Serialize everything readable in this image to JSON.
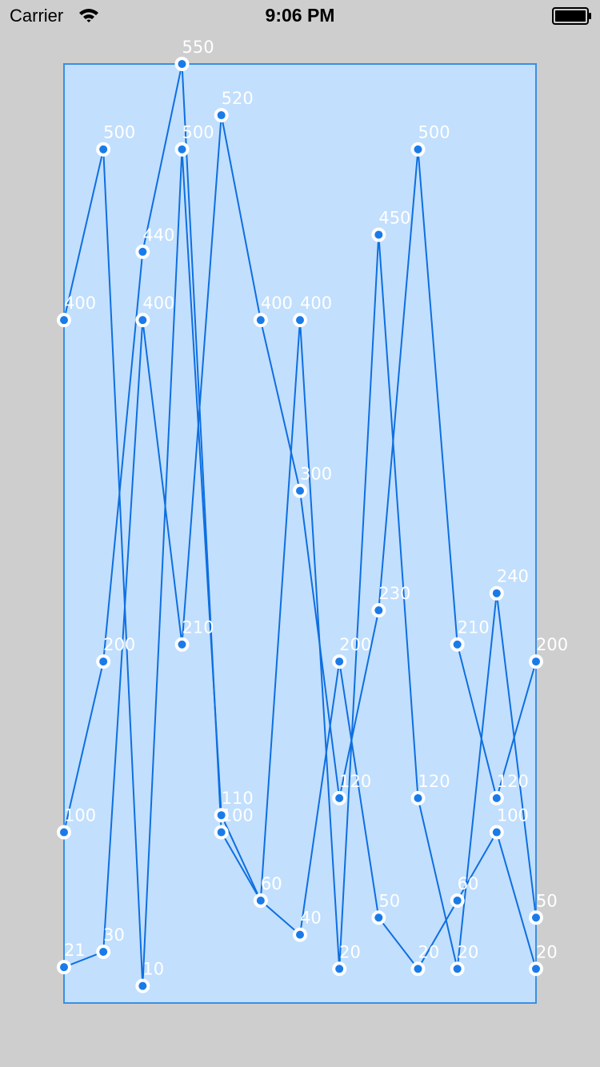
{
  "status_bar": {
    "carrier": "Carrier",
    "time": "9:06 PM",
    "icons": [
      "wifi-icon",
      "battery-icon"
    ]
  },
  "colors": {
    "background": "#cecece",
    "plot_area": "#c2dffd",
    "plot_border": "#3a8fe4",
    "line": "#0e6fe0",
    "marker_fill": "#1a7be8",
    "marker_ring": "#ffffff",
    "label": "#ffffff"
  },
  "chart_data": {
    "type": "line",
    "ylim": [
      0,
      550
    ],
    "grid": false,
    "legend": "none",
    "series": [
      {
        "values": [
          400,
          500,
          10,
          500,
          110,
          60,
          400,
          20,
          450,
          120,
          20,
          240,
          50
        ]
      },
      {
        "values": [
          100,
          200,
          440,
          550,
          100,
          60,
          40,
          200,
          50,
          20,
          60,
          100,
          20
        ]
      },
      {
        "values": [
          21,
          30,
          400,
          210,
          520,
          400,
          300,
          120,
          230,
          500,
          210,
          120,
          200
        ]
      }
    ]
  }
}
